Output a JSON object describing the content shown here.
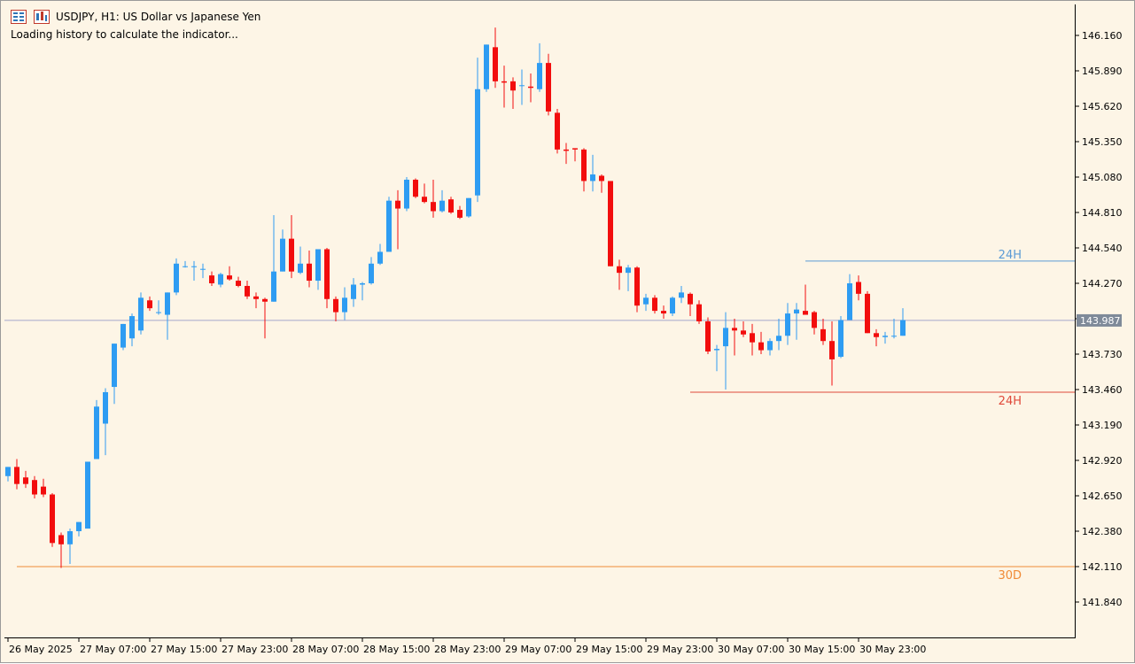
{
  "header": {
    "title": "USDJPY, H1:  US Dollar vs Japanese Yen",
    "status": "Loading history to calculate the indicator..."
  },
  "icons": [
    "one-click-trading-icon",
    "chart-properties-icon"
  ],
  "colors": {
    "background": "#fdf5e6",
    "bull": "#2e9cf2",
    "bear": "#f20d0d",
    "bid_line": "#a6a6cc",
    "level_24h_high": "#5b9bd5",
    "level_24h_low": "#e0493a",
    "level_30d_low": "#f08a36"
  },
  "chart_data": {
    "type": "candlestick",
    "symbol": "USDJPY",
    "timeframe": "H1",
    "ylim": [
      141.69,
      146.29
    ],
    "y_ticks": [
      "146.160",
      "145.890",
      "145.620",
      "145.350",
      "145.080",
      "144.810",
      "144.540",
      "144.270",
      "144.000",
      "143.730",
      "143.460",
      "143.190",
      "142.920",
      "142.650",
      "142.380",
      "142.110",
      "141.840"
    ],
    "current_price": "143.987",
    "current_price_value": 143.987,
    "x_labels": [
      {
        "label": "26 May 2025",
        "bar": 0
      },
      {
        "label": "27 May 07:00",
        "bar": 8
      },
      {
        "label": "27 May 15:00",
        "bar": 16
      },
      {
        "label": "27 May 23:00",
        "bar": 24
      },
      {
        "label": "28 May 07:00",
        "bar": 32
      },
      {
        "label": "28 May 15:00",
        "bar": 40
      },
      {
        "label": "28 May 23:00",
        "bar": 48
      },
      {
        "label": "29 May 07:00",
        "bar": 56
      },
      {
        "label": "29 May 15:00",
        "bar": 64
      },
      {
        "label": "29 May 23:00",
        "bar": 72
      },
      {
        "label": "30 May 07:00",
        "bar": 80
      },
      {
        "label": "30 May 15:00",
        "bar": 88
      },
      {
        "label": "30 May 23:00",
        "bar": 96
      }
    ],
    "levels": [
      {
        "label": "24H",
        "value": 144.44,
        "start_bar": 90,
        "kind": "high"
      },
      {
        "label": "24H",
        "value": 143.44,
        "start_bar": 77,
        "kind": "low"
      },
      {
        "label": "30D",
        "value": 142.11,
        "start_bar": 1,
        "kind": "low"
      }
    ],
    "candles": [
      {
        "o": 142.8,
        "h": 142.87,
        "l": 142.76,
        "c": 142.87
      },
      {
        "o": 142.87,
        "h": 142.93,
        "l": 142.7,
        "c": 142.74
      },
      {
        "o": 142.79,
        "h": 142.84,
        "l": 142.71,
        "c": 142.74
      },
      {
        "o": 142.77,
        "h": 142.8,
        "l": 142.63,
        "c": 142.66
      },
      {
        "o": 142.72,
        "h": 142.78,
        "l": 142.64,
        "c": 142.66
      },
      {
        "o": 142.66,
        "h": 142.67,
        "l": 142.26,
        "c": 142.29
      },
      {
        "o": 142.35,
        "h": 142.37,
        "l": 142.1,
        "c": 142.28
      },
      {
        "o": 142.28,
        "h": 142.4,
        "l": 142.13,
        "c": 142.38
      },
      {
        "o": 142.38,
        "h": 142.45,
        "l": 142.34,
        "c": 142.45
      },
      {
        "o": 142.4,
        "h": 142.91,
        "l": 142.4,
        "c": 142.91
      },
      {
        "o": 142.93,
        "h": 143.38,
        "l": 142.93,
        "c": 143.33
      },
      {
        "o": 143.2,
        "h": 143.47,
        "l": 142.96,
        "c": 143.44
      },
      {
        "o": 143.48,
        "h": 143.81,
        "l": 143.35,
        "c": 143.81
      },
      {
        "o": 143.78,
        "h": 143.96,
        "l": 143.76,
        "c": 143.96
      },
      {
        "o": 143.85,
        "h": 144.04,
        "l": 143.79,
        "c": 144.02
      },
      {
        "o": 143.91,
        "h": 144.2,
        "l": 143.88,
        "c": 144.16
      },
      {
        "o": 144.14,
        "h": 144.17,
        "l": 144.06,
        "c": 144.08
      },
      {
        "o": 144.05,
        "h": 144.14,
        "l": 144.03,
        "c": 144.05
      },
      {
        "o": 144.03,
        "h": 144.2,
        "l": 143.84,
        "c": 144.2
      },
      {
        "o": 144.2,
        "h": 144.46,
        "l": 144.18,
        "c": 144.42
      },
      {
        "o": 144.4,
        "h": 144.44,
        "l": 144.39,
        "c": 144.4
      },
      {
        "o": 144.4,
        "h": 144.44,
        "l": 144.29,
        "c": 144.4
      },
      {
        "o": 144.38,
        "h": 144.42,
        "l": 144.31,
        "c": 144.38
      },
      {
        "o": 144.33,
        "h": 144.36,
        "l": 144.25,
        "c": 144.27
      },
      {
        "o": 144.26,
        "h": 144.35,
        "l": 144.24,
        "c": 144.34
      },
      {
        "o": 144.33,
        "h": 144.4,
        "l": 144.29,
        "c": 144.3
      },
      {
        "o": 144.29,
        "h": 144.32,
        "l": 144.24,
        "c": 144.25
      },
      {
        "o": 144.25,
        "h": 144.29,
        "l": 144.15,
        "c": 144.17
      },
      {
        "o": 144.17,
        "h": 144.2,
        "l": 144.08,
        "c": 144.15
      },
      {
        "o": 144.15,
        "h": 144.16,
        "l": 143.85,
        "c": 144.13
      },
      {
        "o": 144.13,
        "h": 144.79,
        "l": 144.13,
        "c": 144.36
      },
      {
        "o": 144.36,
        "h": 144.68,
        "l": 144.36,
        "c": 144.61
      },
      {
        "o": 144.61,
        "h": 144.79,
        "l": 144.31,
        "c": 144.36
      },
      {
        "o": 144.35,
        "h": 144.55,
        "l": 144.34,
        "c": 144.42
      },
      {
        "o": 144.42,
        "h": 144.52,
        "l": 144.24,
        "c": 144.29
      },
      {
        "o": 144.29,
        "h": 144.53,
        "l": 144.22,
        "c": 144.53
      },
      {
        "o": 144.53,
        "h": 144.54,
        "l": 144.08,
        "c": 144.15
      },
      {
        "o": 144.15,
        "h": 144.17,
        "l": 143.98,
        "c": 144.05
      },
      {
        "o": 144.05,
        "h": 144.24,
        "l": 143.99,
        "c": 144.16
      },
      {
        "o": 144.15,
        "h": 144.31,
        "l": 144.09,
        "c": 144.26
      },
      {
        "o": 144.26,
        "h": 144.28,
        "l": 144.14,
        "c": 144.27
      },
      {
        "o": 144.27,
        "h": 144.47,
        "l": 144.26,
        "c": 144.42
      },
      {
        "o": 144.42,
        "h": 144.57,
        "l": 144.41,
        "c": 144.51
      },
      {
        "o": 144.51,
        "h": 144.93,
        "l": 144.53,
        "c": 144.9
      },
      {
        "o": 144.9,
        "h": 144.98,
        "l": 144.53,
        "c": 144.84
      },
      {
        "o": 144.84,
        "h": 145.08,
        "l": 144.82,
        "c": 145.06
      },
      {
        "o": 145.06,
        "h": 145.07,
        "l": 144.92,
        "c": 144.93
      },
      {
        "o": 144.93,
        "h": 145.03,
        "l": 144.88,
        "c": 144.89
      },
      {
        "o": 144.89,
        "h": 145.06,
        "l": 144.77,
        "c": 144.82
      },
      {
        "o": 144.82,
        "h": 144.98,
        "l": 144.81,
        "c": 144.9
      },
      {
        "o": 144.91,
        "h": 144.93,
        "l": 144.8,
        "c": 144.81
      },
      {
        "o": 144.83,
        "h": 144.86,
        "l": 144.76,
        "c": 144.77
      },
      {
        "o": 144.78,
        "h": 144.92,
        "l": 144.77,
        "c": 144.92
      },
      {
        "o": 144.94,
        "h": 145.99,
        "l": 144.89,
        "c": 145.75
      },
      {
        "o": 145.75,
        "h": 146.09,
        "l": 145.73,
        "c": 146.09
      },
      {
        "o": 146.07,
        "h": 146.22,
        "l": 145.76,
        "c": 145.81
      },
      {
        "o": 145.81,
        "h": 145.93,
        "l": 145.61,
        "c": 145.8
      },
      {
        "o": 145.81,
        "h": 145.84,
        "l": 145.6,
        "c": 145.74
      },
      {
        "o": 145.78,
        "h": 145.9,
        "l": 145.63,
        "c": 145.78
      },
      {
        "o": 145.77,
        "h": 145.87,
        "l": 145.65,
        "c": 145.76
      },
      {
        "o": 145.75,
        "h": 146.1,
        "l": 145.73,
        "c": 145.95
      },
      {
        "o": 145.95,
        "h": 146.02,
        "l": 145.55,
        "c": 145.58
      },
      {
        "o": 145.57,
        "h": 145.6,
        "l": 145.26,
        "c": 145.29
      },
      {
        "o": 145.29,
        "h": 145.34,
        "l": 145.18,
        "c": 145.28
      },
      {
        "o": 145.3,
        "h": 145.3,
        "l": 145.2,
        "c": 145.29
      },
      {
        "o": 145.29,
        "h": 145.3,
        "l": 144.97,
        "c": 145.05
      },
      {
        "o": 145.05,
        "h": 145.25,
        "l": 144.97,
        "c": 145.1
      },
      {
        "o": 145.09,
        "h": 145.1,
        "l": 144.96,
        "c": 145.05
      },
      {
        "o": 145.05,
        "h": 145.05,
        "l": 144.4,
        "c": 144.4
      },
      {
        "o": 144.4,
        "h": 144.45,
        "l": 144.22,
        "c": 144.35
      },
      {
        "o": 144.35,
        "h": 144.41,
        "l": 144.21,
        "c": 144.39
      },
      {
        "o": 144.39,
        "h": 144.4,
        "l": 144.05,
        "c": 144.1
      },
      {
        "o": 144.11,
        "h": 144.19,
        "l": 144.06,
        "c": 144.16
      },
      {
        "o": 144.16,
        "h": 144.18,
        "l": 144.04,
        "c": 144.06
      },
      {
        "o": 144.06,
        "h": 144.1,
        "l": 144.0,
        "c": 144.04
      },
      {
        "o": 144.04,
        "h": 144.17,
        "l": 144.02,
        "c": 144.16
      },
      {
        "o": 144.16,
        "h": 144.25,
        "l": 144.12,
        "c": 144.2
      },
      {
        "o": 144.19,
        "h": 144.2,
        "l": 144.02,
        "c": 144.11
      },
      {
        "o": 144.11,
        "h": 144.14,
        "l": 143.96,
        "c": 143.98
      },
      {
        "o": 143.98,
        "h": 144.01,
        "l": 143.73,
        "c": 143.75
      },
      {
        "o": 143.76,
        "h": 143.8,
        "l": 143.6,
        "c": 143.77
      },
      {
        "o": 143.79,
        "h": 144.05,
        "l": 143.46,
        "c": 143.93
      },
      {
        "o": 143.93,
        "h": 144.0,
        "l": 143.72,
        "c": 143.91
      },
      {
        "o": 143.91,
        "h": 143.98,
        "l": 143.86,
        "c": 143.88
      },
      {
        "o": 143.89,
        "h": 143.96,
        "l": 143.72,
        "c": 143.82
      },
      {
        "o": 143.82,
        "h": 143.9,
        "l": 143.73,
        "c": 143.76
      },
      {
        "o": 143.76,
        "h": 143.85,
        "l": 143.72,
        "c": 143.83
      },
      {
        "o": 143.83,
        "h": 144.0,
        "l": 143.76,
        "c": 143.87
      },
      {
        "o": 143.87,
        "h": 144.12,
        "l": 143.8,
        "c": 144.04
      },
      {
        "o": 144.04,
        "h": 144.12,
        "l": 143.84,
        "c": 144.07
      },
      {
        "o": 144.06,
        "h": 144.26,
        "l": 144.03,
        "c": 144.03
      },
      {
        "o": 144.05,
        "h": 144.06,
        "l": 143.88,
        "c": 143.93
      },
      {
        "o": 143.92,
        "h": 144.0,
        "l": 143.8,
        "c": 143.83
      },
      {
        "o": 143.83,
        "h": 143.98,
        "l": 143.49,
        "c": 143.69
      },
      {
        "o": 143.71,
        "h": 144.02,
        "l": 143.7,
        "c": 143.99
      },
      {
        "o": 143.99,
        "h": 144.34,
        "l": 143.99,
        "c": 144.27
      },
      {
        "o": 144.28,
        "h": 144.33,
        "l": 144.14,
        "c": 144.19
      },
      {
        "o": 144.19,
        "h": 144.21,
        "l": 143.89,
        "c": 143.89
      },
      {
        "o": 143.89,
        "h": 143.92,
        "l": 143.79,
        "c": 143.86
      },
      {
        "o": 143.86,
        "h": 143.9,
        "l": 143.81,
        "c": 143.87
      },
      {
        "o": 143.87,
        "h": 144.0,
        "l": 143.85,
        "c": 143.87
      },
      {
        "o": 143.87,
        "h": 144.08,
        "l": 143.87,
        "c": 143.99
      }
    ]
  }
}
